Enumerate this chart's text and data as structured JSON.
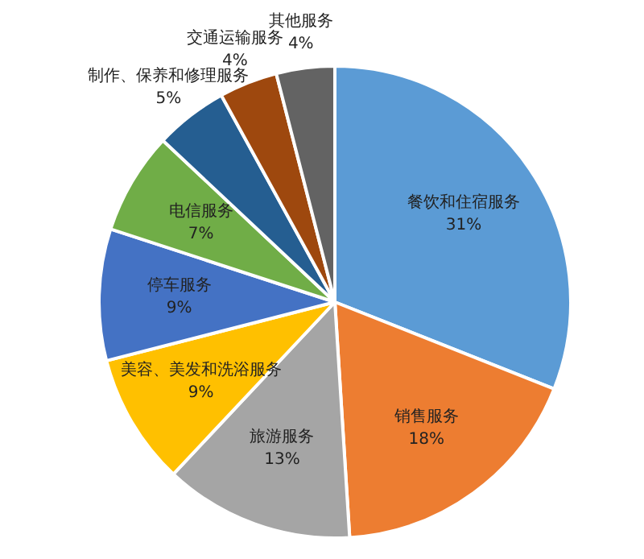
{
  "chart_data": {
    "type": "pie",
    "categories": [
      "餐饮和住宿服务",
      "销售服务",
      "旅游服务",
      "美容、美发和洗浴服务",
      "停车服务",
      "电信服务",
      "制作、保养和修理服务",
      "交通运输服务",
      "其他服务"
    ],
    "values": [
      31,
      18,
      13,
      9,
      9,
      7,
      5,
      4,
      4
    ],
    "value_labels": [
      "31%",
      "18%",
      "13%",
      "9%",
      "9%",
      "7%",
      "5%",
      "4%",
      "4%"
    ],
    "colors": [
      "#5b9bd5",
      "#ed7d31",
      "#a5a5a5",
      "#ffc000",
      "#4472c4",
      "#70ad47",
      "#255e91",
      "#9e480e",
      "#636363"
    ],
    "legend": false
  }
}
